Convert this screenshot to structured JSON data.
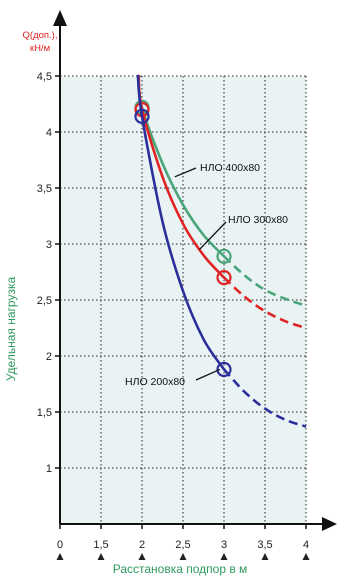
{
  "chart_data": {
    "type": "line",
    "x_axis": {
      "label": "Расстановка подпор в м",
      "ticks": [
        "0",
        "1,5",
        "2",
        "2,5",
        "3",
        "3,5",
        "4"
      ],
      "tick_values": [
        1,
        1.5,
        2,
        2.5,
        3,
        3.5,
        4
      ],
      "range": [
        1,
        4
      ],
      "label_color": "#2e9a5e"
    },
    "y_axis": {
      "label": "Удельная нагрузка",
      "unit_line1": "Q(доп.),",
      "unit_line2": "кН/м",
      "ticks": [
        "1",
        "1,5",
        "2",
        "2,5",
        "3",
        "3,5",
        "4",
        "4,5"
      ],
      "tick_values": [
        1,
        1.5,
        2,
        2.5,
        3,
        3.5,
        4,
        4.5
      ],
      "range": [
        0.5,
        4.5
      ],
      "label_color": "#2e9a5e",
      "unit_color": "#e02020"
    },
    "grid": true,
    "plot_background": "#e9f3f4",
    "series": [
      {
        "name": "НЛО 400х80",
        "color": "#4aa57a",
        "solid": [
          [
            1.95,
            4.5
          ],
          [
            2.0,
            4.22
          ],
          [
            2.25,
            3.72
          ],
          [
            2.5,
            3.35
          ],
          [
            2.75,
            3.08
          ],
          [
            3.0,
            2.89
          ]
        ],
        "dashed": [
          [
            3.0,
            2.89
          ],
          [
            3.25,
            2.72
          ],
          [
            3.5,
            2.59
          ],
          [
            3.75,
            2.51
          ],
          [
            4.0,
            2.45
          ]
        ],
        "marker": [
          2.0,
          4.22
        ]
      },
      {
        "name": "НЛО 300х80",
        "color": "#e02424",
        "solid": [
          [
            1.96,
            4.5
          ],
          [
            2.0,
            4.2
          ],
          [
            2.25,
            3.6
          ],
          [
            2.5,
            3.18
          ],
          [
            2.75,
            2.9
          ],
          [
            3.0,
            2.7
          ]
        ],
        "dashed": [
          [
            3.0,
            2.7
          ],
          [
            3.25,
            2.53
          ],
          [
            3.5,
            2.4
          ],
          [
            3.75,
            2.31
          ],
          [
            4.0,
            2.25
          ]
        ],
        "marker": [
          2.0,
          4.2
        ]
      },
      {
        "name": "НЛО 200х80",
        "color": "#2a2f9c",
        "solid": [
          [
            1.95,
            4.5
          ],
          [
            2.0,
            4.14
          ],
          [
            2.25,
            3.2
          ],
          [
            2.5,
            2.58
          ],
          [
            2.75,
            2.15
          ],
          [
            3.0,
            1.88
          ]
        ],
        "dashed": [
          [
            3.0,
            1.88
          ],
          [
            3.25,
            1.68
          ],
          [
            3.5,
            1.53
          ],
          [
            3.75,
            1.43
          ],
          [
            4.0,
            1.37
          ]
        ],
        "marker": [
          2.0,
          4.14
        ]
      }
    ],
    "markers_at_x3": [
      {
        "series": "НЛО 400х80",
        "y": 2.89
      },
      {
        "series": "НЛО 300х80",
        "y": 2.7
      },
      {
        "series": "НЛО 200х80",
        "y": 1.88
      }
    ],
    "annotations": [
      {
        "text": "НЛО 400х80",
        "series": "НЛО 400х80",
        "anchor": [
          2.4,
          3.6
        ]
      },
      {
        "text": "НЛО 300х80",
        "series": "НЛО 300х80",
        "anchor": [
          2.7,
          2.95
        ]
      },
      {
        "text": "НЛО 200х80",
        "series": "НЛО 200х80",
        "anchor": [
          2.95,
          1.88
        ]
      }
    ]
  }
}
